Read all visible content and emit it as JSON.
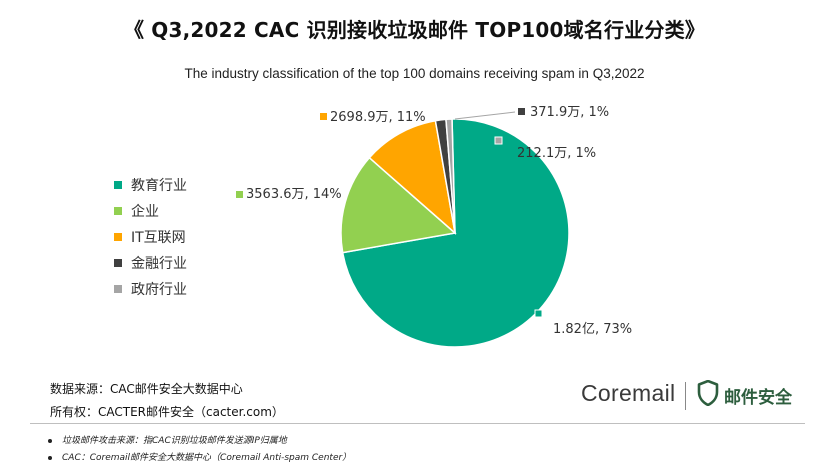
{
  "header": {
    "title": "《 Q3,2022 CAC 识别接收垃圾邮件 TOP100域名行业分类》",
    "subtitle": "The industry classification of the top 100 domains receiving spam in Q3,2022"
  },
  "chart_data": {
    "type": "pie",
    "title": "《 Q3,2022 CAC 识别接收垃圾邮件 TOP100域名行业分类》",
    "subtitle": "The industry classification of the top 100 domains receiving spam in Q3,2022",
    "legend_position": "left",
    "slices": [
      {
        "name": "教育行业",
        "value": 18200,
        "percent": 73,
        "label": "1.82亿, 73%",
        "color": "#00a987"
      },
      {
        "name": "企业",
        "value": 3563.6,
        "percent": 14,
        "label": "3563.6万, 14%",
        "color": "#92d050"
      },
      {
        "name": "IT互联网",
        "value": 2698.9,
        "percent": 11,
        "label": "2698.9万, 11%",
        "color": "#ffa500"
      },
      {
        "name": "金融行业",
        "value": 371.9,
        "percent": 1,
        "label": "371.9万, 1%",
        "color": "#404040"
      },
      {
        "name": "政府行业",
        "value": 212.1,
        "percent": 1,
        "label": "212.1万, 1%",
        "color": "#a5a5a5"
      }
    ]
  },
  "footer": {
    "source": "数据来源：CAC邮件安全大数据中心",
    "ownership": "所有权：CACTER邮件安全（cacter.com）",
    "notes": [
      "垃圾邮件攻击来源：指CAC识别垃圾邮件发送源IP归属地",
      "CAC：Coremail邮件安全大数据中心（Coremail Anti-spam Center）"
    ]
  },
  "branding": {
    "logo_text": "Coremail",
    "product_text": "邮件安全",
    "shield_color": "#2d5e3e"
  }
}
